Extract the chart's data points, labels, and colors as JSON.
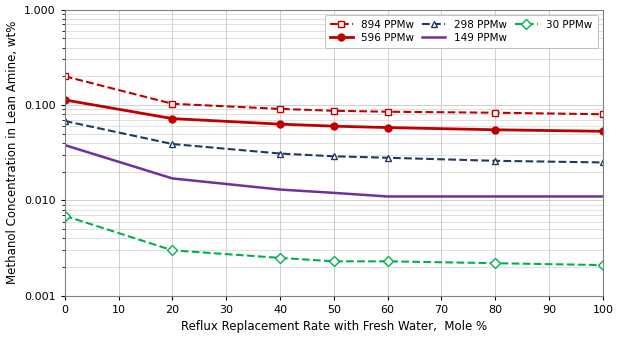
{
  "x": [
    0,
    20,
    40,
    50,
    60,
    80,
    100
  ],
  "series": [
    {
      "label": "894 PPMw",
      "color": "#C00000",
      "linestyle": "dashed",
      "marker": "s",
      "markerfacecolor": "white",
      "markeredgecolor": "#C00000",
      "markersize": 5,
      "linewidth": 1.5,
      "values": [
        0.2,
        0.103,
        0.091,
        0.087,
        0.085,
        0.083,
        0.08
      ]
    },
    {
      "label": "596 PPMw",
      "color": "#C00000",
      "linestyle": "solid",
      "marker": "o",
      "markerfacecolor": "#C00000",
      "markeredgecolor": "#C00000",
      "markersize": 5,
      "linewidth": 2.0,
      "values": [
        0.113,
        0.072,
        0.063,
        0.06,
        0.058,
        0.055,
        0.053
      ]
    },
    {
      "label": "298 PPMw",
      "color": "#1F3864",
      "linestyle": "dashed",
      "marker": "^",
      "markerfacecolor": "white",
      "markeredgecolor": "#1F3864",
      "markersize": 5,
      "linewidth": 1.5,
      "values": [
        0.068,
        0.039,
        0.031,
        0.029,
        0.028,
        0.026,
        0.025
      ]
    },
    {
      "label": "149 PPMw",
      "color": "#7030A0",
      "linestyle": "solid",
      "marker": null,
      "markerfacecolor": "none",
      "markeredgecolor": "#7030A0",
      "markersize": 0,
      "linewidth": 1.8,
      "values": [
        0.038,
        0.017,
        0.013,
        0.012,
        0.011,
        0.011,
        0.011
      ]
    },
    {
      "label": "30 PPMw",
      "color": "#00B050",
      "linestyle": "dashed",
      "marker": "D",
      "markerfacecolor": "white",
      "markeredgecolor": "#00B050",
      "markersize": 5,
      "linewidth": 1.5,
      "values": [
        0.0069,
        0.003,
        0.0025,
        0.0023,
        0.0023,
        0.0022,
        0.0021
      ]
    }
  ],
  "xlabel": "Reflux Replacement Rate with Fresh Water,  Mole %",
  "ylabel": "Methanol Concentration in Lean Amine, wt%",
  "xlim": [
    0,
    100
  ],
  "ylim": [
    0.001,
    1.0
  ],
  "xticks": [
    0,
    10,
    20,
    30,
    40,
    50,
    60,
    70,
    80,
    90,
    100
  ],
  "yticks": [
    0.001,
    0.01,
    0.1,
    1.0
  ],
  "ytick_labels": [
    "0.001",
    "0.010",
    "0.100",
    "1.000"
  ],
  "background_color": "#FFFFFF",
  "grid_color": "#C8C8C8",
  "axis_fontsize": 8.5,
  "tick_fontsize": 8
}
